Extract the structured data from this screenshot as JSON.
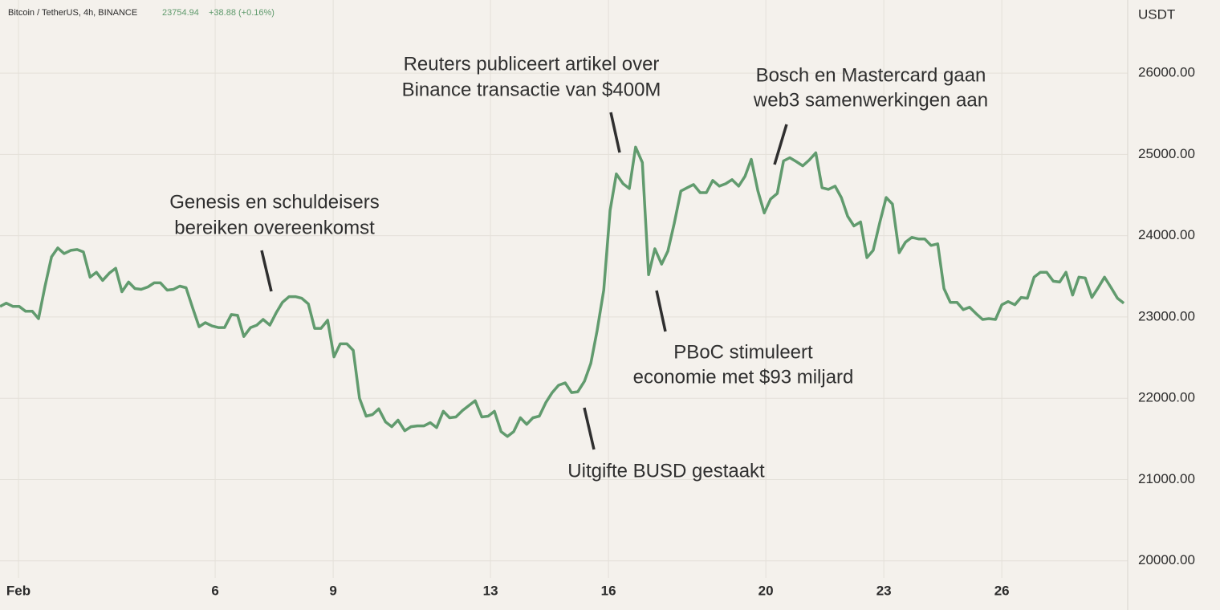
{
  "chart_data": {
    "type": "line",
    "header": "Bitcoin / TetherUS, 4h, BINANCE",
    "price": "23754.94",
    "change": "+38.88 (+0.16%)",
    "y_unit": "USDT",
    "color": "#619b6e",
    "grid": true,
    "xlim": [
      0.53,
      29.2
    ],
    "xticks": [
      {
        "value": 1,
        "label": "Feb"
      },
      6,
      9,
      13,
      16,
      20,
      23,
      26
    ],
    "ylim": [
      19790,
      26900
    ],
    "yticks": [
      {
        "value": 20000,
        "label": "20000.00"
      },
      {
        "value": 21000,
        "label": "21000.00"
      },
      {
        "value": 22000,
        "label": "22000.00"
      },
      {
        "value": 23000,
        "label": "23000.00"
      },
      {
        "value": 24000,
        "label": "24000.00"
      },
      {
        "value": 25000,
        "label": "25000.00"
      },
      {
        "value": 26000,
        "label": "26000.00"
      }
    ],
    "x": [
      0.53,
      0.69,
      0.86,
      1.02,
      1.18,
      1.35,
      1.51,
      1.67,
      1.84,
      2.0,
      2.16,
      2.33,
      2.49,
      2.65,
      2.82,
      2.98,
      3.14,
      3.31,
      3.47,
      3.63,
      3.8,
      3.96,
      4.12,
      4.29,
      4.45,
      4.61,
      4.78,
      4.94,
      5.1,
      5.26,
      5.43,
      5.59,
      5.75,
      5.92,
      6.08,
      6.24,
      6.41,
      6.57,
      6.73,
      6.9,
      7.06,
      7.22,
      7.39,
      7.55,
      7.71,
      7.88,
      8.04,
      8.2,
      8.37,
      8.53,
      8.69,
      8.86,
      9.02,
      9.18,
      9.35,
      9.51,
      9.67,
      9.84,
      10.0,
      10.16,
      10.33,
      10.49,
      10.65,
      10.82,
      10.98,
      11.14,
      11.31,
      11.47,
      11.63,
      11.8,
      11.96,
      12.12,
      12.29,
      12.45,
      12.61,
      12.78,
      12.94,
      13.1,
      13.27,
      13.43,
      13.59,
      13.76,
      13.92,
      14.08,
      14.24,
      14.41,
      14.57,
      14.73,
      14.9,
      15.06,
      15.22,
      15.39,
      15.55,
      15.71,
      15.88,
      16.04,
      16.2,
      16.37,
      16.53,
      16.69,
      16.86,
      17.02,
      17.18,
      17.35,
      17.51,
      17.67,
      17.84,
      18.0,
      18.16,
      18.33,
      18.49,
      18.65,
      18.82,
      18.98,
      19.14,
      19.31,
      19.47,
      19.63,
      19.8,
      19.96,
      20.12,
      20.29,
      20.45,
      20.61,
      20.78,
      20.94,
      21.1,
      21.27,
      21.43,
      21.59,
      21.76,
      21.92,
      22.08,
      22.24,
      22.41,
      22.57,
      22.73,
      22.9,
      23.06,
      23.22,
      23.39,
      23.55,
      23.71,
      23.88,
      24.04,
      24.2,
      24.37,
      24.53,
      24.69,
      24.86,
      25.02,
      25.18,
      25.35,
      25.51,
      25.67,
      25.84,
      26.0,
      26.16,
      26.33,
      26.49,
      26.65,
      26.82,
      26.98,
      27.14,
      27.31,
      27.47,
      27.63,
      27.8,
      27.96,
      28.12,
      28.29,
      28.45,
      28.61,
      28.78,
      28.94,
      29.1
    ],
    "values": [
      23130,
      23170,
      23130,
      23130,
      23070,
      23070,
      22980,
      23370,
      23740,
      23850,
      23780,
      23820,
      23830,
      23800,
      23490,
      23550,
      23450,
      23540,
      23600,
      23310,
      23430,
      23350,
      23340,
      23370,
      23420,
      23420,
      23330,
      23340,
      23380,
      23360,
      23110,
      22880,
      22930,
      22890,
      22870,
      22870,
      23030,
      23020,
      22760,
      22870,
      22900,
      22970,
      22900,
      23050,
      23180,
      23250,
      23250,
      23230,
      23160,
      22860,
      22860,
      22960,
      22510,
      22670,
      22670,
      22590,
      22000,
      21780,
      21800,
      21870,
      21710,
      21650,
      21730,
      21600,
      21650,
      21660,
      21660,
      21700,
      21640,
      21840,
      21760,
      21770,
      21850,
      21910,
      21970,
      21770,
      21780,
      21840,
      21590,
      21530,
      21590,
      21760,
      21680,
      21760,
      21780,
      21950,
      22070,
      22160,
      22190,
      22070,
      22080,
      22210,
      22430,
      22830,
      23330,
      24310,
      24760,
      24640,
      24580,
      25090,
      24900,
      23520,
      23840,
      23650,
      23810,
      24150,
      24550,
      24590,
      24630,
      24530,
      24530,
      24680,
      24610,
      24640,
      24690,
      24610,
      24730,
      24940,
      24550,
      24280,
      24450,
      24520,
      24920,
      24960,
      24910,
      24860,
      24930,
      25020,
      24590,
      24570,
      24610,
      24470,
      24240,
      24120,
      24170,
      23730,
      23820,
      24170,
      24470,
      24390,
      23790,
      23920,
      23980,
      23960,
      23960,
      23880,
      23900,
      23350,
      23180,
      23180,
      23090,
      23120,
      23040,
      22970,
      22980,
      22970,
      23150,
      23190,
      23150,
      23240,
      23230,
      23490,
      23550,
      23550,
      23440,
      23430,
      23550,
      23270,
      23490,
      23480,
      23240,
      23360,
      23490,
      23360,
      23230,
      23170
    ],
    "annotations": [
      {
        "lines": [
          "Genesis en schuldeisers",
          "bereiken overeenkomst"
        ]
      },
      {
        "lines": [
          "Reuters publiceert artikel over",
          "Binance transactie van $400M"
        ]
      },
      {
        "lines": [
          "Bosch en Mastercard gaan",
          "web3 samenwerkingen aan"
        ]
      },
      {
        "lines": [
          "PBoC stimuleert",
          "economie met $93 miljard"
        ]
      },
      {
        "lines": [
          "Uitgifte BUSD gestaakt"
        ]
      }
    ]
  }
}
